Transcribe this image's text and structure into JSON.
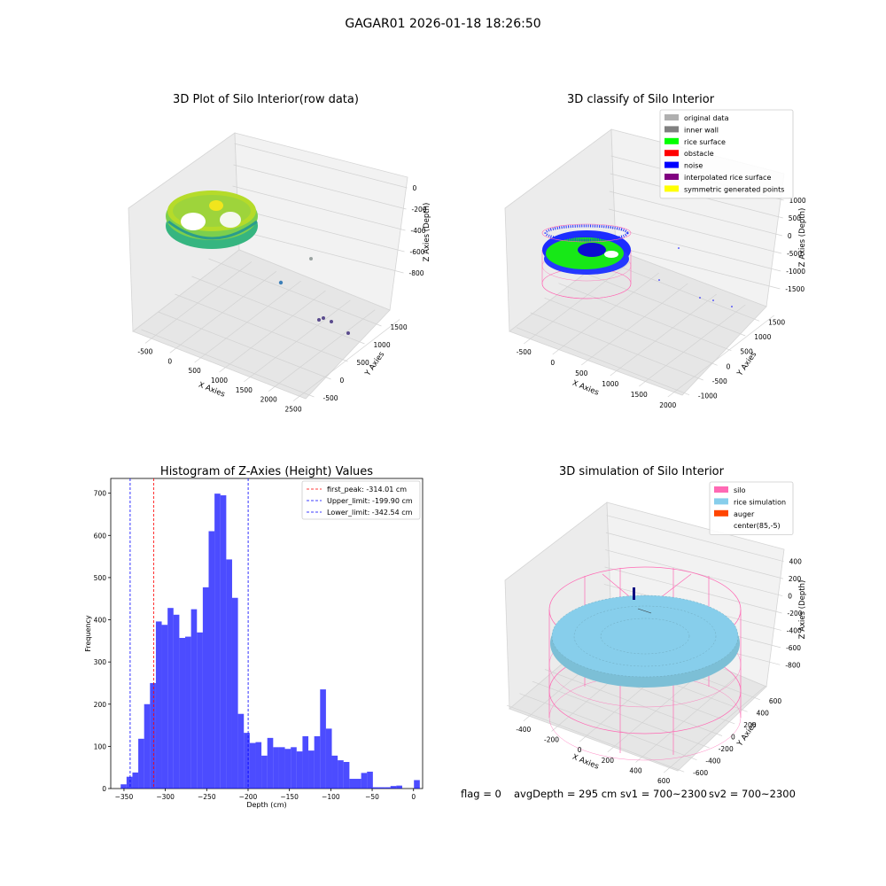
{
  "suptitle": "GAGAR01 2026-01-18 18:26:50",
  "panels": {
    "raw": {
      "title": "3D Plot of Silo Interior(row data)",
      "xlabel": "X Axies",
      "ylabel": "Y Axies",
      "zlabel": "Z Axies (Depth)",
      "xticks": [
        "-500",
        "0",
        "500",
        "1000",
        "1500",
        "2000",
        "2500"
      ],
      "yticks": [
        "-500",
        "0",
        "500",
        "1000",
        "1500"
      ],
      "zticks": [
        "0",
        "-200",
        "-400",
        "-600",
        "-800"
      ]
    },
    "classify": {
      "title": "3D classify of Silo Interior",
      "xlabel": "X Axies",
      "ylabel": "Y Axies",
      "zlabel": "Z Axies (Depth)",
      "xticks": [
        "-500",
        "0",
        "500",
        "1000",
        "1500",
        "2000"
      ],
      "yticks": [
        "-1000",
        "-500",
        "0",
        "500",
        "1000",
        "1500"
      ],
      "zticks": [
        "1000",
        "500",
        "0",
        "-500",
        "-1000",
        "-1500"
      ],
      "legend": [
        {
          "label": "original data",
          "color": "#b0b0b0"
        },
        {
          "label": "inner wall",
          "color": "#808080"
        },
        {
          "label": "rice surface",
          "color": "#00ff00"
        },
        {
          "label": "obstacle",
          "color": "#ff0000"
        },
        {
          "label": "noise",
          "color": "#0000ff"
        },
        {
          "label": "interpolated rice surface",
          "color": "#800080"
        },
        {
          "label": "symmetric generated points",
          "color": "#ffff00"
        }
      ]
    },
    "sim": {
      "title": "3D simulation of Silo Interior",
      "xlabel": "X Axies",
      "ylabel": "Y Axies",
      "zlabel": "Z Axies (Depth)",
      "xticks": [
        "-400",
        "-200",
        "0",
        "200",
        "400",
        "600"
      ],
      "yticks": [
        "-600",
        "-400",
        "-200",
        "0",
        "200",
        "400",
        "600"
      ],
      "zticks": [
        "400",
        "200",
        "0",
        "-200",
        "-400",
        "-600",
        "-800"
      ],
      "legend": [
        {
          "label": "silo",
          "color": "#ff69b4"
        },
        {
          "label": "rice simulation",
          "color": "#87ceeb"
        },
        {
          "label": "auger",
          "color": "#ff4500"
        },
        {
          "label": "center(85,-5)",
          "color": ""
        }
      ]
    }
  },
  "chart_data": {
    "type": "bar",
    "title": "Histogram of Z-Axies (Height) Values",
    "xlabel": "Depth (cm)",
    "ylabel": "Frequency",
    "xlim": [
      -366,
      11
    ],
    "ylim": [
      0,
      735
    ],
    "xticks": [
      -350,
      -300,
      -250,
      -200,
      -150,
      -100,
      -50,
      0
    ],
    "yticks": [
      0,
      100,
      200,
      300,
      400,
      500,
      600,
      700
    ],
    "bin_start": -354,
    "bin_width": 7.09,
    "values": [
      10,
      28,
      38,
      118,
      200,
      250,
      396,
      388,
      428,
      412,
      357,
      360,
      425,
      370,
      477,
      610,
      699,
      695,
      543,
      452,
      177,
      132,
      108,
      110,
      78,
      120,
      98,
      98,
      94,
      98,
      88,
      124,
      90,
      124,
      235,
      142,
      78,
      67,
      63,
      23,
      23,
      37,
      40,
      3,
      3,
      3,
      6,
      7,
      0,
      0,
      20
    ],
    "color": "#0000ff",
    "vlines": [
      {
        "label": "first_peak: -314.01 cm",
        "x": -314.01,
        "color": "#ff0000"
      },
      {
        "label": "Upper_limit: -199.90 cm",
        "x": -199.9,
        "color": "#0000ff"
      },
      {
        "label": "Lower_limit: -342.54 cm",
        "x": -342.54,
        "color": "#0000ff"
      }
    ]
  },
  "status": {
    "flag": "flag = 0",
    "avg": "avgDepth = 295 cm",
    "sv1": "sv1 = 700~2300",
    "sv2": "sv2 = 700~2300"
  }
}
